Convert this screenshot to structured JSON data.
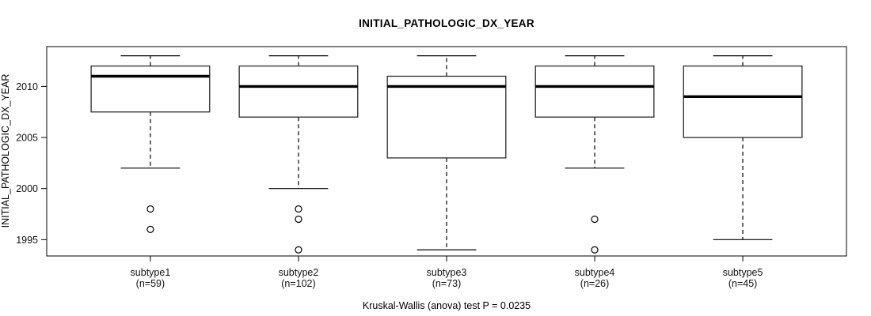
{
  "chart_data": {
    "type": "boxplot",
    "title": "INITIAL_PATHOLOGIC_DX_YEAR",
    "ylabel": "INITIAL_PATHOLOGIC_DX_YEAR",
    "xlabel": "",
    "annotation": "Kruskal-Wallis (anova) test P = 0.0235",
    "p_value": "0.0235",
    "yticks": [
      1995,
      2000,
      2005,
      2010
    ],
    "ylim": [
      1993.4,
      2013.9
    ],
    "grid": false,
    "legend": "none",
    "groups": [
      {
        "label": "subtype1",
        "sublabel": "(n=59)",
        "n": 59,
        "whisker_low": 2002,
        "q1": 2007.5,
        "median": 2011,
        "q3": 2012,
        "whisker_high": 2013,
        "outliers": [
          1998,
          1996
        ]
      },
      {
        "label": "subtype2",
        "sublabel": "(n=102)",
        "n": 102,
        "whisker_low": 2000,
        "q1": 2007,
        "median": 2010,
        "q3": 2012,
        "whisker_high": 2013,
        "outliers": [
          1998,
          1997,
          1994
        ]
      },
      {
        "label": "subtype3",
        "sublabel": "(n=73)",
        "n": 73,
        "whisker_low": 1994,
        "q1": 2003,
        "median": 2010,
        "q3": 2011,
        "whisker_high": 2013,
        "outliers": []
      },
      {
        "label": "subtype4",
        "sublabel": "(n=26)",
        "n": 26,
        "whisker_low": 2002,
        "q1": 2007,
        "median": 2010,
        "q3": 2012,
        "whisker_high": 2013,
        "outliers": [
          1997,
          1994
        ]
      },
      {
        "label": "subtype5",
        "sublabel": "(n=45)",
        "n": 45,
        "whisker_low": 1995,
        "q1": 2005,
        "median": 2009,
        "q3": 2012,
        "whisker_high": 2013,
        "outliers": []
      }
    ],
    "colors": {
      "line": "#000000",
      "box_fill": "#ffffff",
      "background": "#ffffff"
    }
  }
}
